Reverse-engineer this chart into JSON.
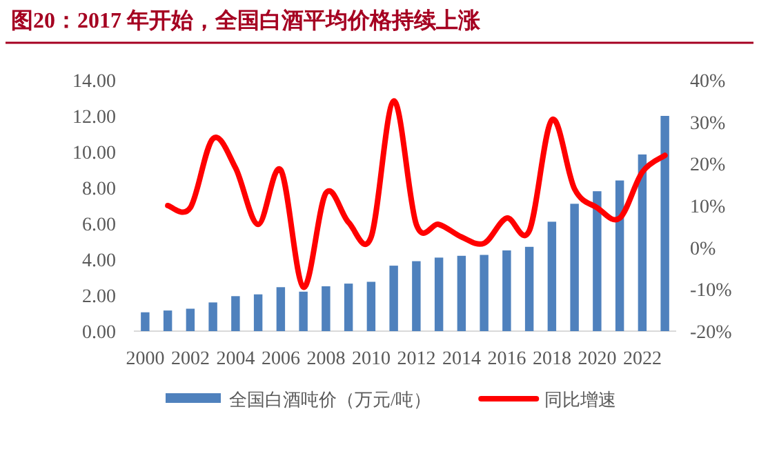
{
  "chart_data": {
    "type": "bar",
    "title": "图20：2017 年开始，全国白酒平均价格持续上涨",
    "categories": [
      "2000",
      null,
      "2002",
      null,
      "2004",
      null,
      "2006",
      null,
      "2008",
      null,
      "2010",
      null,
      "2012",
      null,
      "2014",
      null,
      "2016",
      null,
      "2018",
      null,
      "2020",
      null,
      "2022",
      null
    ],
    "series": [
      {
        "name": "全国白酒吨价（万元/吨）",
        "color": "#4f81bd",
        "values": [
          1.05,
          1.15,
          1.25,
          1.6,
          1.95,
          2.05,
          2.45,
          2.2,
          2.5,
          2.65,
          2.75,
          3.65,
          3.9,
          4.1,
          4.2,
          4.25,
          4.5,
          4.7,
          6.1,
          7.1,
          7.8,
          8.4,
          9.85,
          12.0
        ]
      },
      {
        "name": "同比增速",
        "type": "line",
        "axis": "y2",
        "color": "#ff0000",
        "values": [
          null,
          10,
          9.5,
          26,
          19,
          5.5,
          18.5,
          -9.5,
          13,
          6,
          2.5,
          35,
          5.5,
          5.5,
          2.5,
          1,
          7,
          4,
          30.5,
          14,
          9.5,
          7,
          18,
          22
        ]
      }
    ],
    "ylim": [
      0,
      14
    ],
    "yticks": [
      {
        "value": 0,
        "label": "0.00"
      },
      {
        "value": 2,
        "label": "2.00"
      },
      {
        "value": 4,
        "label": "4.00"
      },
      {
        "value": 6,
        "label": "6.00"
      },
      {
        "value": 8,
        "label": "8.00"
      },
      {
        "value": 10,
        "label": "10.00"
      },
      {
        "value": 12,
        "label": "12.00"
      },
      {
        "value": 14,
        "label": "14.00"
      }
    ],
    "y2lim": [
      -20,
      40
    ],
    "y2ticks": [
      {
        "value": -20,
        "label": "-20%"
      },
      {
        "value": -10,
        "label": "-10%"
      },
      {
        "value": 0,
        "label": "0%"
      },
      {
        "value": 10,
        "label": "10%"
      },
      {
        "value": 20,
        "label": "20%"
      },
      {
        "value": 30,
        "label": "30%"
      },
      {
        "value": 40,
        "label": "40%"
      }
    ],
    "legend": "bottom"
  }
}
